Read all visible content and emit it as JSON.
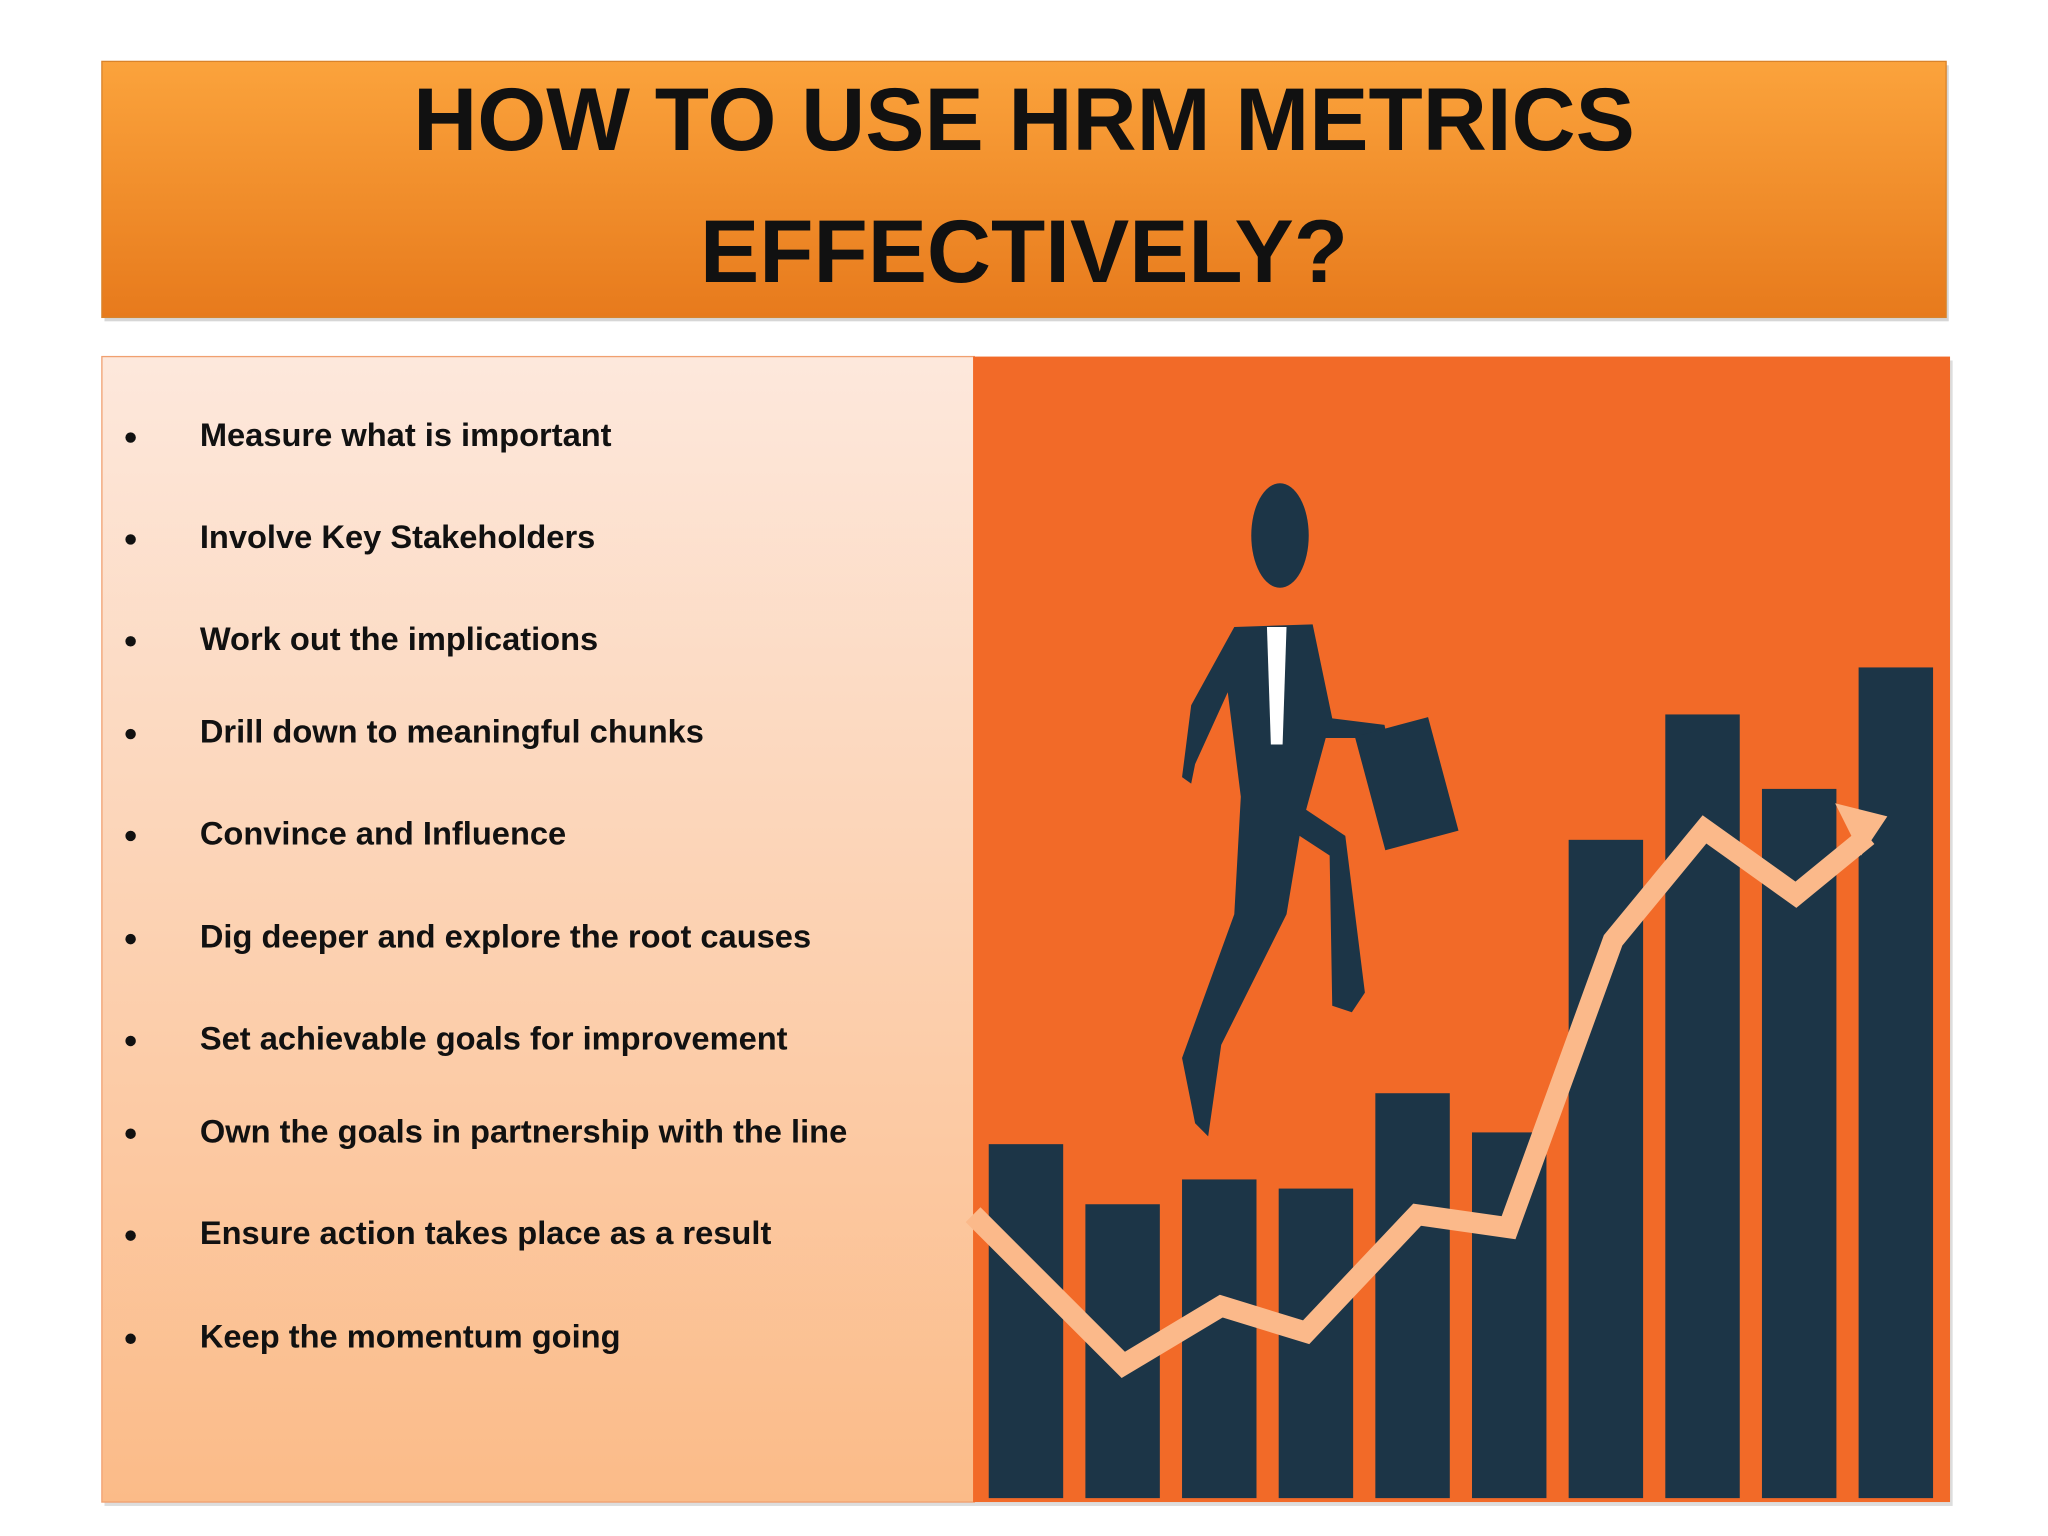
{
  "header": {
    "title_lines": [
      "HOW TO USE HRM METRICS",
      "EFFECTIVELY?"
    ]
  },
  "bullets": [
    "Measure what is important",
    "Involve Key Stakeholders",
    "Work out the implications",
    "Drill down to meaningful chunks",
    "Convince and Influence",
    "Dig deeper and explore the root causes",
    "Set achievable goals for improvement",
    "Own the goals in partnership with the line",
    "Ensure action takes place as a result",
    "Keep the momentum going"
  ]
}
